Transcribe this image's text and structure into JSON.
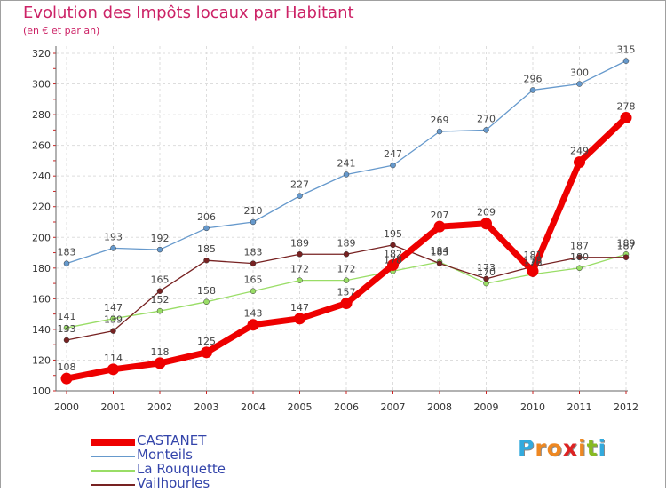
{
  "title": "Evolution des Impôts locaux par Habitant",
  "subtitle": "(en € et par an)",
  "logo": {
    "letters": [
      "P",
      "r",
      "o",
      "x",
      "i",
      "t",
      "i"
    ],
    "colors": [
      "#33aadd",
      "#ee8822",
      "#ee8822",
      "#dd2222",
      "#ee8822",
      "#88bb22",
      "#33aadd"
    ]
  },
  "chart_data": {
    "type": "line",
    "x": [
      2000,
      2001,
      2002,
      2003,
      2004,
      2005,
      2006,
      2007,
      2008,
      2009,
      2010,
      2011,
      2012
    ],
    "ylim": [
      100,
      320
    ],
    "yticks": [
      100,
      120,
      140,
      160,
      180,
      200,
      220,
      240,
      260,
      280,
      300,
      320
    ],
    "grid": true,
    "legend_position": "bottom-left",
    "series": [
      {
        "name": "CASTANET",
        "color": "#ee0000",
        "values": [
          108,
          114,
          118,
          125,
          143,
          147,
          157,
          182,
          207,
          209,
          178,
          249,
          278
        ]
      },
      {
        "name": "Monteils",
        "color": "#6699cc",
        "values": [
          183,
          193,
          192,
          206,
          210,
          227,
          241,
          247,
          269,
          270,
          296,
          300,
          315
        ]
      },
      {
        "name": "La Rouquette",
        "color": "#99dd66",
        "values": [
          141,
          147,
          152,
          158,
          165,
          172,
          172,
          178,
          184,
          170,
          176,
          180,
          189
        ]
      },
      {
        "name": "Vailhourles",
        "color": "#772222",
        "values": [
          133,
          139,
          165,
          185,
          183,
          189,
          189,
          195,
          183,
          173,
          181,
          187,
          187
        ]
      }
    ]
  }
}
